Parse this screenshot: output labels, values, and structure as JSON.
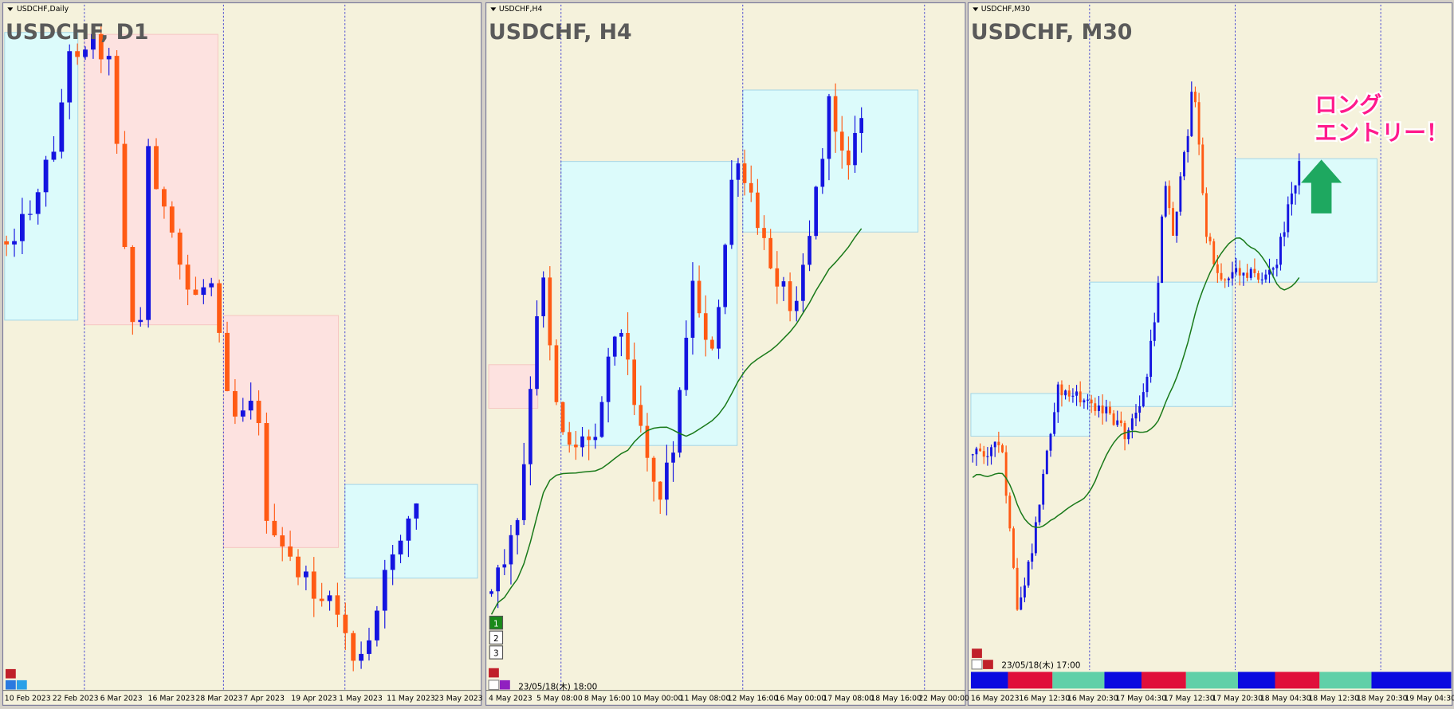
{
  "panels": [
    {
      "caption": "USDCHF,Daily",
      "title": "USDCHF, D1",
      "dates": [
        "10 Feb 2023",
        "22 Feb 2023",
        "6 Mar 2023",
        "16 Mar 2023",
        "28 Mar 2023",
        "7 Apr 2023",
        "19 Apr 2023",
        "1 May 2023",
        "11 May 2023",
        "23 May 2023"
      ]
    },
    {
      "caption": "USDCHF,H4",
      "title": "USDCHF, H4",
      "dates": [
        "4 May 2023",
        "5 May 08:00",
        "8 May 16:00",
        "10 May 00:00",
        "11 May 08:00",
        "12 May 16:00",
        "16 May 00:00",
        "17 May 08:00",
        "18 May 16:00",
        "22 May 00:00"
      ],
      "timestamp": "23/05/18(木) 18:00",
      "buttons": [
        "1",
        "2",
        "3"
      ]
    },
    {
      "caption": "USDCHF,M30",
      "title": "USDCHF, M30",
      "dates": [
        "16 May 2023",
        "16 May 12:30",
        "16 May 20:30",
        "17 May 04:30",
        "17 May 12:30",
        "17 May 20:30",
        "18 May 04:30",
        "18 May 12:30",
        "18 May 20:30",
        "19 May 04:30"
      ],
      "timestamp": "23/05/18(木) 17:00"
    }
  ],
  "annotation": {
    "line1": "ロング",
    "line2": "エントリー！"
  }
}
